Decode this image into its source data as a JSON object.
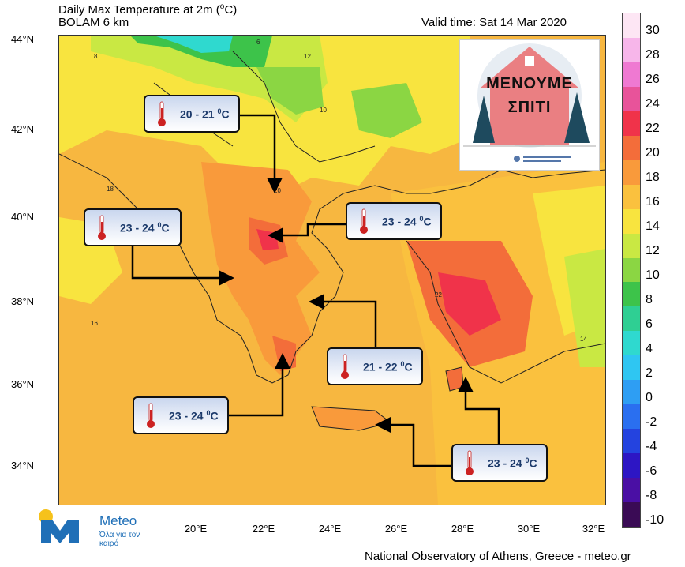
{
  "header": {
    "title": "Daily Max Temperature at 2m (",
    "title_unit": "C)",
    "model": "BOLAM 6 km",
    "valid_time": "Valid time: Sat 14 Mar 2020"
  },
  "axes": {
    "lat_labels": [
      "44°N",
      "42°N",
      "40°N",
      "38°N",
      "36°N",
      "34°N"
    ],
    "lon_labels": [
      "20°E",
      "22°E",
      "24°E",
      "26°E",
      "28°E",
      "30°E",
      "32°E"
    ]
  },
  "colorbar": {
    "labels": [
      "30",
      "28",
      "26",
      "24",
      "22",
      "20",
      "18",
      "16",
      "14",
      "12",
      "10",
      "8",
      "6",
      "4",
      "2",
      "0",
      "-2",
      "-4",
      "-6",
      "-8",
      "-10"
    ],
    "colors": [
      "#fde6f4",
      "#f7b6ea",
      "#ef79d2",
      "#e8539a",
      "#f0334a",
      "#f36d3a",
      "#f99a3b",
      "#fac13e",
      "#f8e43f",
      "#c9e843",
      "#8bd643",
      "#3dc34a",
      "#2fcf93",
      "#2fd9cf",
      "#2fc6f2",
      "#2e9ef3",
      "#2a6ff0",
      "#2443df",
      "#2d16c4",
      "#4a0fa4",
      "#3a0b55"
    ]
  },
  "callouts": [
    {
      "text": "20 - 21",
      "unit": "C"
    },
    {
      "text": "23 - 24",
      "unit": "C"
    },
    {
      "text": "23 - 24",
      "unit": "C"
    },
    {
      "text": "21 - 22",
      "unit": "C"
    },
    {
      "text": "23 - 24",
      "unit": "C"
    },
    {
      "text": "23 - 24",
      "unit": "C"
    }
  ],
  "poster": {
    "line1": "ΜΕΝΟΥΜΕ",
    "line2": "ΣΠΙΤΙ"
  },
  "logo": {
    "name": "Meteo",
    "tagline": "Όλα για τον καιρό"
  },
  "footer": "National Observatory of Athens, Greece - meteo.gr",
  "map_numbers": [
    "12",
    "10",
    "8",
    "6",
    "16",
    "14",
    "18",
    "20",
    "22"
  ]
}
